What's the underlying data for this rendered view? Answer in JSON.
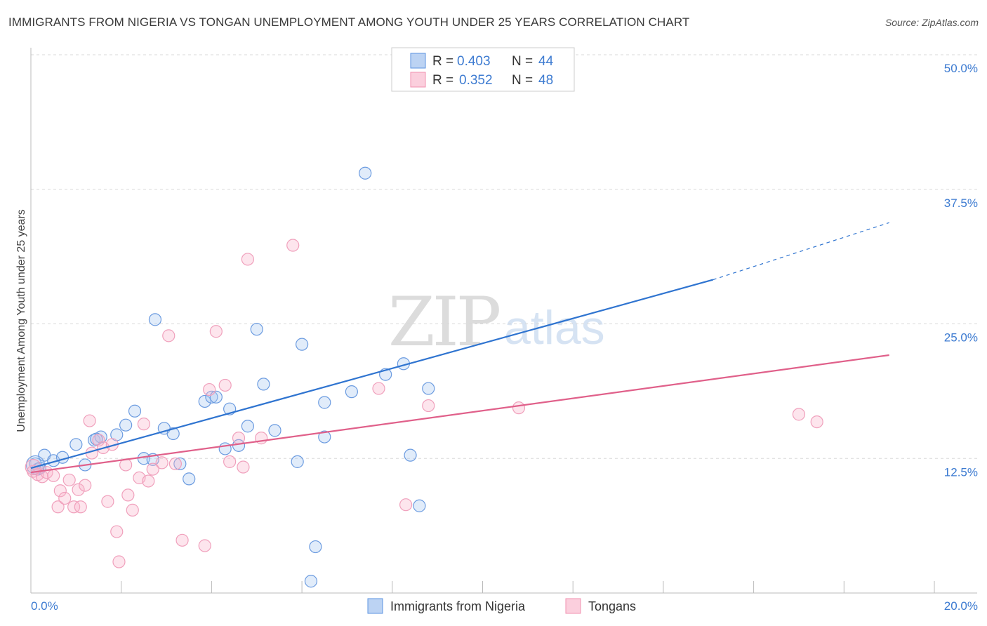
{
  "header": {
    "title": "IMMIGRANTS FROM NIGERIA VS TONGAN UNEMPLOYMENT AMONG YOUTH UNDER 25 YEARS CORRELATION CHART",
    "source": "Source: ZipAtlas.com"
  },
  "watermark": {
    "part1": "ZIP",
    "part2": "atlas"
  },
  "legend": {
    "r_label": "R =",
    "n_label": "N =",
    "rows": [
      {
        "r": "0.403",
        "n": "44"
      },
      {
        "r": "0.352",
        "n": "48"
      }
    ]
  },
  "chart_data": {
    "type": "scatter",
    "title": "IMMIGRANTS FROM NIGERIA VS TONGAN UNEMPLOYMENT AMONG YOUTH UNDER 25 YEARS CORRELATION CHART",
    "xlabel": "",
    "ylabel": "Unemployment Among Youth under 25 years",
    "xlim": [
      0,
      20
    ],
    "ylim": [
      0,
      50
    ],
    "x_tick_labels": [
      "0.0%",
      "20.0%"
    ],
    "y_ticks": [
      12.5,
      25.0,
      37.5,
      50.0
    ],
    "y_tick_labels": [
      "12.5%",
      "25.0%",
      "37.5%",
      "50.0%"
    ],
    "grid": true,
    "legend_position": "top-center",
    "colors": {
      "nigeria": "#5b93e0",
      "tongans": "#f090b0",
      "nigeria_line": "#2f74d0",
      "tongans_line": "#e0608a"
    },
    "series": [
      {
        "name": "Immigrants from Nigeria",
        "r": 0.403,
        "n": 44,
        "trend": {
          "x0": 0.0,
          "y0": 11.6,
          "x1": 15.1,
          "y1": 29.1,
          "dash_x1": 19.0,
          "dash_y1": 34.4
        },
        "points": [
          [
            0.15,
            11.5
          ],
          [
            0.3,
            12.8
          ],
          [
            0.5,
            12.3
          ],
          [
            0.7,
            12.6
          ],
          [
            1.0,
            13.8
          ],
          [
            1.2,
            11.9
          ],
          [
            1.4,
            14.2
          ],
          [
            1.55,
            14.5
          ],
          [
            1.9,
            14.7
          ],
          [
            2.1,
            15.6
          ],
          [
            2.3,
            16.9
          ],
          [
            2.5,
            12.5
          ],
          [
            2.7,
            12.4
          ],
          [
            2.75,
            25.4
          ],
          [
            2.95,
            15.3
          ],
          [
            3.15,
            14.8
          ],
          [
            3.3,
            12.0
          ],
          [
            3.5,
            10.6
          ],
          [
            3.85,
            17.8
          ],
          [
            4.0,
            18.2
          ],
          [
            4.1,
            18.2
          ],
          [
            4.3,
            13.4
          ],
          [
            4.4,
            17.1
          ],
          [
            4.6,
            13.7
          ],
          [
            4.8,
            15.5
          ],
          [
            5.0,
            24.5
          ],
          [
            5.15,
            19.4
          ],
          [
            5.4,
            15.1
          ],
          [
            5.9,
            12.2
          ],
          [
            6.0,
            23.1
          ],
          [
            6.2,
            1.1
          ],
          [
            6.3,
            4.3
          ],
          [
            6.5,
            17.7
          ],
          [
            6.5,
            14.5
          ],
          [
            7.1,
            18.7
          ],
          [
            7.4,
            39.0
          ],
          [
            7.85,
            20.3
          ],
          [
            8.25,
            21.3
          ],
          [
            8.6,
            8.1
          ],
          [
            8.4,
            12.8
          ],
          [
            8.8,
            19.0
          ],
          [
            0.1,
            12.0
          ],
          [
            0.2,
            11.6
          ],
          [
            1.45,
            14.3
          ]
        ]
      },
      {
        "name": "Tongans",
        "r": 0.352,
        "n": 48,
        "trend": {
          "x0": 0.0,
          "y0": 11.2,
          "x1": 19.0,
          "y1": 22.1
        },
        "points": [
          [
            0.05,
            11.3
          ],
          [
            0.15,
            11.0
          ],
          [
            0.25,
            10.8
          ],
          [
            0.35,
            11.2
          ],
          [
            0.5,
            10.9
          ],
          [
            0.6,
            8.0
          ],
          [
            0.65,
            9.5
          ],
          [
            0.75,
            8.8
          ],
          [
            0.85,
            10.5
          ],
          [
            0.95,
            8.0
          ],
          [
            1.05,
            9.6
          ],
          [
            1.1,
            8.0
          ],
          [
            1.2,
            10.0
          ],
          [
            1.3,
            16.0
          ],
          [
            1.35,
            13.0
          ],
          [
            1.5,
            14.2
          ],
          [
            1.6,
            13.5
          ],
          [
            1.7,
            8.5
          ],
          [
            1.8,
            13.8
          ],
          [
            1.9,
            5.7
          ],
          [
            1.95,
            2.9
          ],
          [
            2.1,
            11.9
          ],
          [
            2.15,
            9.1
          ],
          [
            2.25,
            7.7
          ],
          [
            2.4,
            10.7
          ],
          [
            2.5,
            15.7
          ],
          [
            2.6,
            10.4
          ],
          [
            2.7,
            11.5
          ],
          [
            2.9,
            12.1
          ],
          [
            3.05,
            23.9
          ],
          [
            3.2,
            12.0
          ],
          [
            3.35,
            4.9
          ],
          [
            3.85,
            4.4
          ],
          [
            3.95,
            18.9
          ],
          [
            4.1,
            24.3
          ],
          [
            4.3,
            19.3
          ],
          [
            4.4,
            12.2
          ],
          [
            4.6,
            14.4
          ],
          [
            4.7,
            11.7
          ],
          [
            4.8,
            31.0
          ],
          [
            5.1,
            14.4
          ],
          [
            5.8,
            32.3
          ],
          [
            7.7,
            19.0
          ],
          [
            8.3,
            8.2
          ],
          [
            8.8,
            17.4
          ],
          [
            10.8,
            17.2
          ],
          [
            17.0,
            16.6
          ],
          [
            17.4,
            15.9
          ]
        ]
      }
    ]
  },
  "bottom_legend": {
    "items": [
      {
        "label": "Immigrants from Nigeria"
      },
      {
        "label": "Tongans"
      }
    ]
  }
}
